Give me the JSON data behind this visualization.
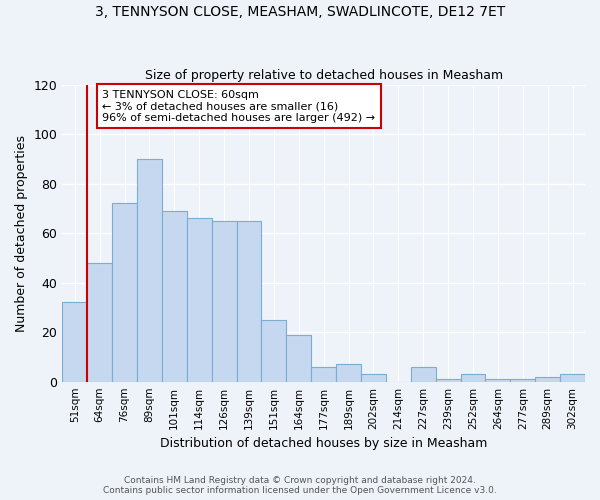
{
  "title1": "3, TENNYSON CLOSE, MEASHAM, SWADLINCOTE, DE12 7ET",
  "title2": "Size of property relative to detached houses in Measham",
  "xlabel": "Distribution of detached houses by size in Measham",
  "ylabel": "Number of detached properties",
  "categories": [
    "51sqm",
    "64sqm",
    "76sqm",
    "89sqm",
    "101sqm",
    "114sqm",
    "126sqm",
    "139sqm",
    "151sqm",
    "164sqm",
    "177sqm",
    "189sqm",
    "202sqm",
    "214sqm",
    "227sqm",
    "239sqm",
    "252sqm",
    "264sqm",
    "277sqm",
    "289sqm",
    "302sqm"
  ],
  "values": [
    32,
    48,
    72,
    90,
    69,
    66,
    65,
    65,
    25,
    19,
    6,
    7,
    3,
    0,
    6,
    1,
    3,
    1,
    1,
    2,
    3
  ],
  "bar_color": "#c5d8f0",
  "bar_edge_color": "#7aadd4",
  "highlight_color": "#cc0000",
  "annotation_text": "3 TENNYSON CLOSE: 60sqm\n← 3% of detached houses are smaller (16)\n96% of semi-detached houses are larger (492) →",
  "annotation_box_color": "#ffffff",
  "annotation_box_edge": "#cc0000",
  "ylim": [
    0,
    120
  ],
  "yticks": [
    0,
    20,
    40,
    60,
    80,
    100,
    120
  ],
  "footer1": "Contains HM Land Registry data © Crown copyright and database right 2024.",
  "footer2": "Contains public sector information licensed under the Open Government Licence v3.0.",
  "bg_color": "#eef2f9",
  "grid_color": "#ffffff",
  "bar_width": 1.0,
  "highlight_bar_index": 1
}
